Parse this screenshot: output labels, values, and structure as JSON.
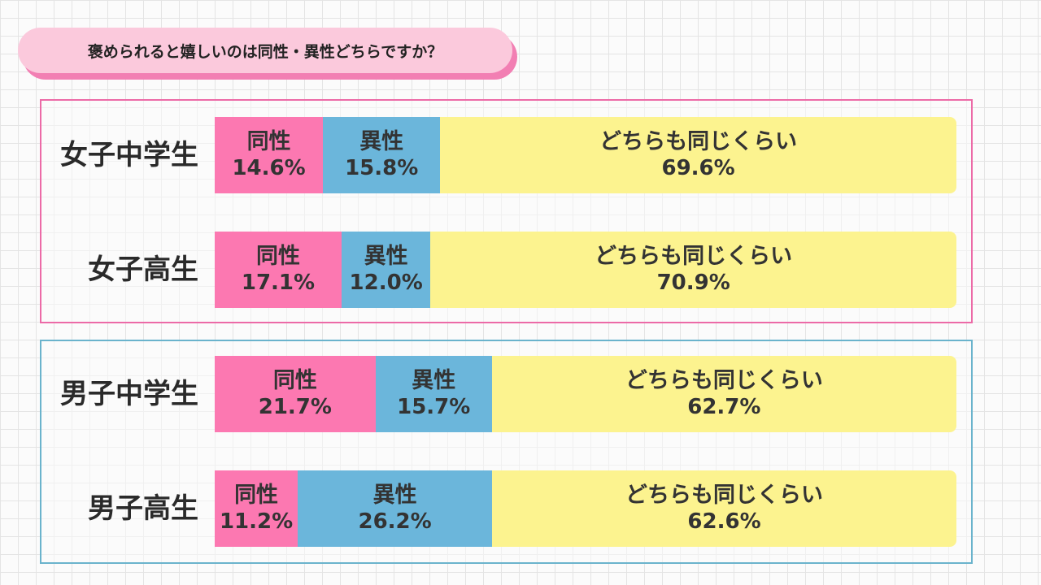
{
  "title": "褒められると嬉しいのは同性・異性どちらですか？",
  "colors": {
    "same": "#fc78b1",
    "opposite": "#6bb6db",
    "either": "#fcf38f",
    "girls_frame": "#ec6aa7",
    "boys_frame": "#6ab3cc"
  },
  "chart_data": {
    "type": "bar",
    "orientation": "horizontal",
    "stacked": true,
    "title": "褒められると嬉しいのは同性・異性どちらですか？",
    "categories": [
      "女子中学生",
      "女子高生",
      "男子中学生",
      "男子高生"
    ],
    "series": [
      {
        "name": "同性",
        "values": [
          14.6,
          17.1,
          21.7,
          11.2
        ]
      },
      {
        "name": "異性",
        "values": [
          15.8,
          12.0,
          15.7,
          26.2
        ]
      },
      {
        "name": "どちらも同じくらい",
        "values": [
          69.6,
          70.9,
          62.7,
          62.6
        ]
      }
    ],
    "unit": "%",
    "groups": [
      {
        "name": "girls",
        "rows": [
          0,
          1
        ]
      },
      {
        "name": "boys",
        "rows": [
          2,
          3
        ]
      }
    ]
  }
}
